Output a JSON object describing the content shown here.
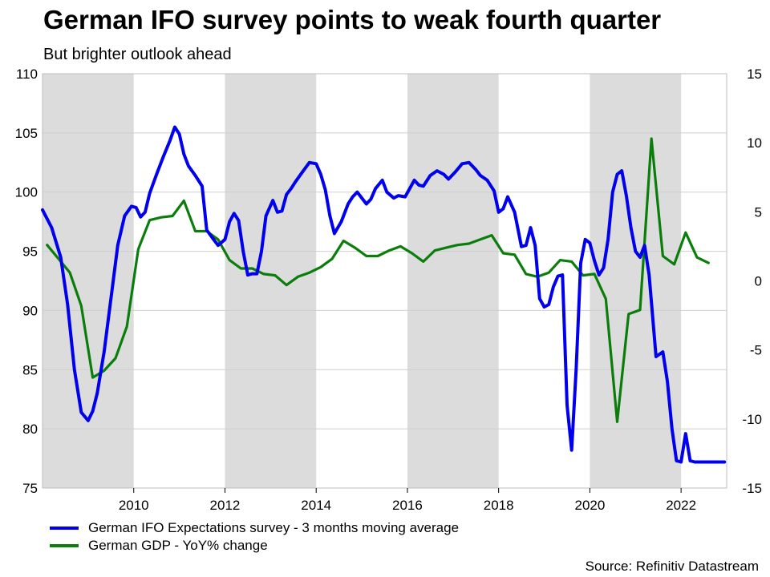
{
  "header": {
    "title": "German IFO survey points to weak fourth quarter",
    "subtitle": "But brighter outlook ahead"
  },
  "footer": {
    "source": "Source: Refinitiv Datastream"
  },
  "chart_data": {
    "type": "line",
    "title": "German IFO survey points to weak fourth quarter",
    "subtitle": "But brighter outlook ahead",
    "xlim": [
      2008.0,
      2023.0
    ],
    "x_ticks": [
      2010,
      2012,
      2014,
      2016,
      2018,
      2020,
      2022
    ],
    "x_tick_labels": [
      "2010",
      "2012",
      "2014",
      "2016",
      "2018",
      "2020",
      "2022"
    ],
    "y_left": {
      "lim": [
        75,
        110
      ],
      "ticks": [
        75,
        80,
        85,
        90,
        95,
        100,
        105,
        110
      ],
      "tick_labels": [
        "75",
        "80",
        "85",
        "90",
        "95",
        "100",
        "105",
        "110"
      ]
    },
    "y_right": {
      "lim": [
        -15,
        15
      ],
      "ticks": [
        -15,
        -10,
        -5,
        0,
        5,
        10,
        15
      ],
      "tick_labels": [
        "-15",
        "-10",
        "-5",
        "0",
        "5",
        "10",
        "15"
      ]
    },
    "grid": true,
    "shaded_periods": [
      [
        2008.0,
        2010.0
      ],
      [
        2012.0,
        2014.0
      ],
      [
        2016.0,
        2018.0
      ],
      [
        2020.0,
        2022.0
      ]
    ],
    "legend": {
      "position": "bottom-left"
    },
    "series": [
      {
        "name": "German IFO Expectations survey - 3 months moving average",
        "axis": "left",
        "color": "#0000ee",
        "x": [
          2008.0,
          2008.2,
          2008.4,
          2008.55,
          2008.7,
          2008.85,
          2009.0,
          2009.1,
          2009.2,
          2009.35,
          2009.5,
          2009.65,
          2009.8,
          2009.95,
          2010.05,
          2010.15,
          2010.25,
          2010.35,
          2010.5,
          2010.65,
          2010.8,
          2010.9,
          2011.0,
          2011.1,
          2011.2,
          2011.35,
          2011.5,
          2011.6,
          2011.75,
          2011.85,
          2012.0,
          2012.1,
          2012.2,
          2012.3,
          2012.4,
          2012.5,
          2012.6,
          2012.7,
          2012.8,
          2012.9,
          2013.05,
          2013.15,
          2013.25,
          2013.35,
          2013.45,
          2013.55,
          2013.7,
          2013.85,
          2014.0,
          2014.1,
          2014.2,
          2014.3,
          2014.4,
          2014.55,
          2014.7,
          2014.8,
          2014.9,
          2015.0,
          2015.1,
          2015.2,
          2015.3,
          2015.45,
          2015.55,
          2015.7,
          2015.8,
          2015.95,
          2016.05,
          2016.15,
          2016.25,
          2016.35,
          2016.5,
          2016.65,
          2016.8,
          2016.9,
          2017.05,
          2017.2,
          2017.35,
          2017.5,
          2017.6,
          2017.75,
          2017.9,
          2018.0,
          2018.1,
          2018.2,
          2018.35,
          2018.5,
          2018.6,
          2018.7,
          2018.8,
          2018.9,
          2019.0,
          2019.1,
          2019.2,
          2019.3,
          2019.4,
          2019.5,
          2019.6,
          2019.7,
          2019.8,
          2019.9,
          2020.0,
          2020.1,
          2020.2,
          2020.3,
          2020.4,
          2020.5,
          2020.6,
          2020.7,
          2020.8,
          2020.9,
          2021.0,
          2021.1,
          2021.2,
          2021.3,
          2021.45,
          2021.6,
          2021.7,
          2021.8,
          2021.9,
          2022.0,
          2022.1,
          2022.2,
          2022.3,
          2022.4,
          2022.5,
          2022.6,
          2022.7,
          2022.8,
          2022.95
        ],
        "values": [
          98.5,
          97.0,
          94.5,
          90.5,
          85.0,
          81.4,
          80.7,
          81.5,
          83.0,
          86.5,
          91.0,
          95.5,
          98.0,
          98.8,
          98.7,
          97.9,
          98.3,
          99.9,
          101.5,
          103.0,
          104.4,
          105.5,
          104.9,
          103.2,
          102.2,
          101.4,
          100.5,
          96.8,
          96.0,
          95.5,
          96.0,
          97.5,
          98.2,
          97.6,
          95.0,
          93.0,
          93.1,
          93.1,
          95.0,
          98.0,
          99.3,
          98.3,
          98.4,
          99.8,
          100.3,
          100.9,
          101.7,
          102.5,
          102.4,
          101.5,
          100.2,
          98.0,
          96.5,
          97.5,
          99.0,
          99.6,
          100.0,
          99.5,
          99.0,
          99.4,
          100.3,
          101.0,
          100.0,
          99.5,
          99.7,
          99.6,
          100.3,
          101.0,
          100.6,
          100.5,
          101.4,
          101.8,
          101.5,
          101.1,
          101.7,
          102.4,
          102.5,
          101.9,
          101.4,
          101.0,
          100.1,
          98.3,
          98.6,
          99.6,
          98.3,
          95.4,
          95.5,
          97.0,
          95.5,
          91.0,
          90.3,
          90.5,
          92.0,
          92.9,
          93.0,
          82.0,
          78.2,
          85.0,
          94.0,
          96.0,
          95.7,
          94.2,
          93.0,
          93.6,
          96.0,
          100.0,
          101.5,
          101.8,
          99.7,
          97.0,
          95.0,
          94.5,
          95.5,
          93.0,
          86.1,
          86.5,
          84.0,
          80.0,
          77.3,
          77.2,
          79.6,
          77.3,
          77.2,
          77.2,
          77.2,
          77.2,
          77.2,
          77.2,
          77.2
        ],
        "values_note": "monthly approximated"
      },
      {
        "name": "German GDP - YoY% change",
        "axis": "right",
        "color": "#0a7d0a",
        "x": [
          2008.1,
          2008.35,
          2008.6,
          2008.85,
          2009.1,
          2009.35,
          2009.6,
          2009.85,
          2010.1,
          2010.35,
          2010.6,
          2010.85,
          2011.1,
          2011.35,
          2011.6,
          2011.85,
          2012.1,
          2012.35,
          2012.6,
          2012.85,
          2013.1,
          2013.35,
          2013.6,
          2013.85,
          2014.1,
          2014.35,
          2014.6,
          2014.85,
          2015.1,
          2015.35,
          2015.6,
          2015.85,
          2016.1,
          2016.35,
          2016.6,
          2016.85,
          2017.1,
          2017.35,
          2017.6,
          2017.85,
          2018.1,
          2018.35,
          2018.6,
          2018.85,
          2019.1,
          2019.35,
          2019.6,
          2019.85,
          2020.1,
          2020.35,
          2020.6,
          2020.85,
          2021.1,
          2021.35,
          2021.6,
          2021.85,
          2022.1,
          2022.35,
          2022.6
        ],
        "values": [
          2.6,
          1.6,
          0.6,
          -1.8,
          -7.0,
          -6.5,
          -5.6,
          -3.3,
          2.3,
          4.4,
          4.6,
          4.7,
          5.8,
          3.6,
          3.6,
          3.0,
          1.5,
          0.9,
          0.9,
          0.5,
          0.4,
          -0.3,
          0.3,
          0.6,
          1.0,
          1.6,
          2.9,
          2.4,
          1.8,
          1.8,
          2.2,
          2.5,
          2.0,
          1.4,
          2.2,
          2.4,
          2.6,
          2.7,
          3.0,
          3.3,
          2.0,
          1.9,
          0.5,
          0.3,
          0.6,
          1.5,
          1.4,
          0.4,
          0.5,
          -1.3,
          -10.2,
          -2.4,
          -2.1,
          10.3,
          1.8,
          1.2,
          3.5,
          1.7,
          1.3
        ],
        "values_note": "approximated"
      }
    ]
  }
}
